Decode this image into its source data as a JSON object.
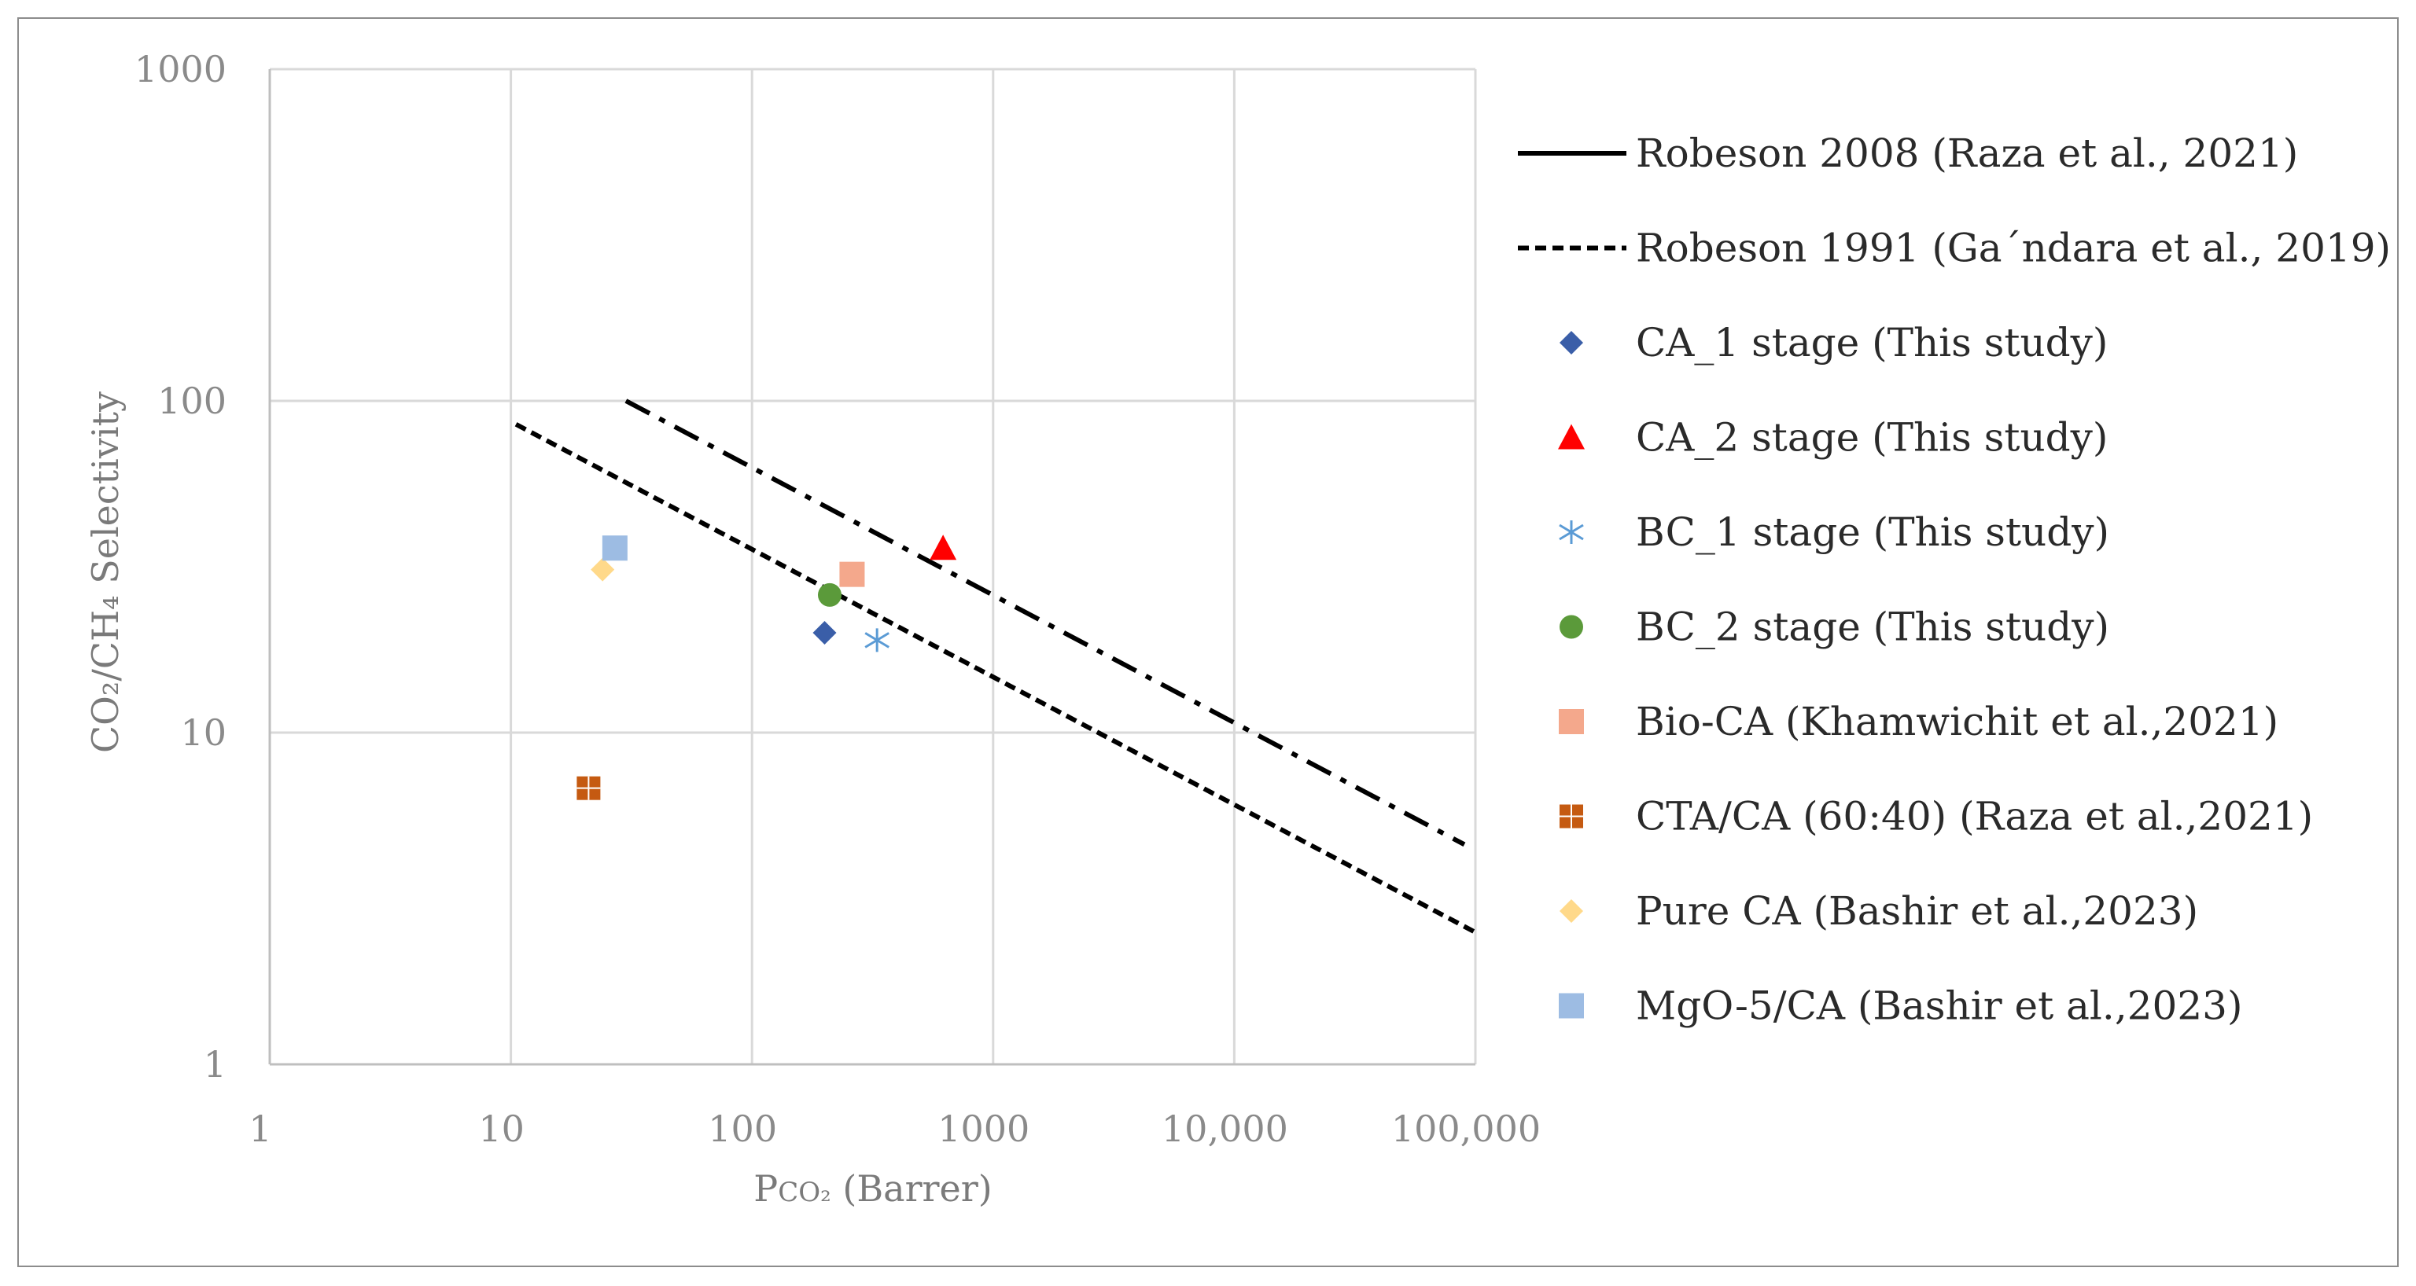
{
  "chart_data": {
    "type": "scatter",
    "x_scale": "log",
    "y_scale": "log",
    "xlim": [
      1,
      100000
    ],
    "ylim": [
      1,
      1000
    ],
    "x_ticks": [
      "1",
      "10",
      "100",
      "1000",
      "10,000",
      "100,000"
    ],
    "y_ticks": [
      "1",
      "10",
      "100",
      "1000"
    ],
    "x_tick_values": [
      1,
      10,
      100,
      1000,
      10000,
      100000
    ],
    "y_tick_values": [
      1,
      10,
      100,
      1000
    ],
    "xlabel_prefix": "P",
    "xlabel_sub": "CO₂",
    "xlabel_suffix": " (Barrer)",
    "ylabel": "CO₂/CH₄  Selectivity",
    "grid": true,
    "legend_position": "right",
    "lines": [
      {
        "name": "Robeson 2008  (Raza et al., 2021)",
        "style": "dashdot",
        "color": "#000000",
        "x": [
          30,
          90000
        ],
        "y": [
          100,
          4.6
        ]
      },
      {
        "name": "Robeson 1991 (Ga´ndara et al., 2019)",
        "style": "dashed",
        "color": "#000000",
        "x": [
          10.5,
          100000
        ],
        "y": [
          85,
          2.5
        ]
      }
    ],
    "series": [
      {
        "name": "CA_1 stage (This study)",
        "marker": "diamond",
        "color": "#3a5ea8",
        "x": [
          200
        ],
        "y": [
          20
        ]
      },
      {
        "name": "CA_2 stage (This study)",
        "marker": "triangle",
        "color": "#ff0000",
        "x": [
          620
        ],
        "y": [
          36
        ]
      },
      {
        "name": "BC_1 stage (This study)",
        "marker": "asterisk",
        "color": "#5b9bd5",
        "x": [
          330
        ],
        "y": [
          19
        ]
      },
      {
        "name": "BC_2 stage (This study)",
        "marker": "circle",
        "color": "#5b9a3a",
        "x": [
          210
        ],
        "y": [
          26
        ]
      },
      {
        "name": "Bio-CA (Khamwichit et al.,2021)",
        "marker": "square",
        "color": "#f4a88c",
        "x": [
          260
        ],
        "y": [
          30
        ]
      },
      {
        "name": "CTA/CA (60:40) (Raza et al.,2021)",
        "marker": "square-cross",
        "color": "#c55a11",
        "x": [
          21
        ],
        "y": [
          6.8
        ]
      },
      {
        "name": "Pure CA  (Bashir et al.,2023)",
        "marker": "diamond",
        "color": "#ffd98a",
        "x": [
          24
        ],
        "y": [
          31
        ]
      },
      {
        "name": "MgO-5/CA (Bashir et al.,2023)",
        "marker": "square",
        "color": "#9dbce3",
        "x": [
          27
        ],
        "y": [
          36
        ]
      }
    ]
  }
}
